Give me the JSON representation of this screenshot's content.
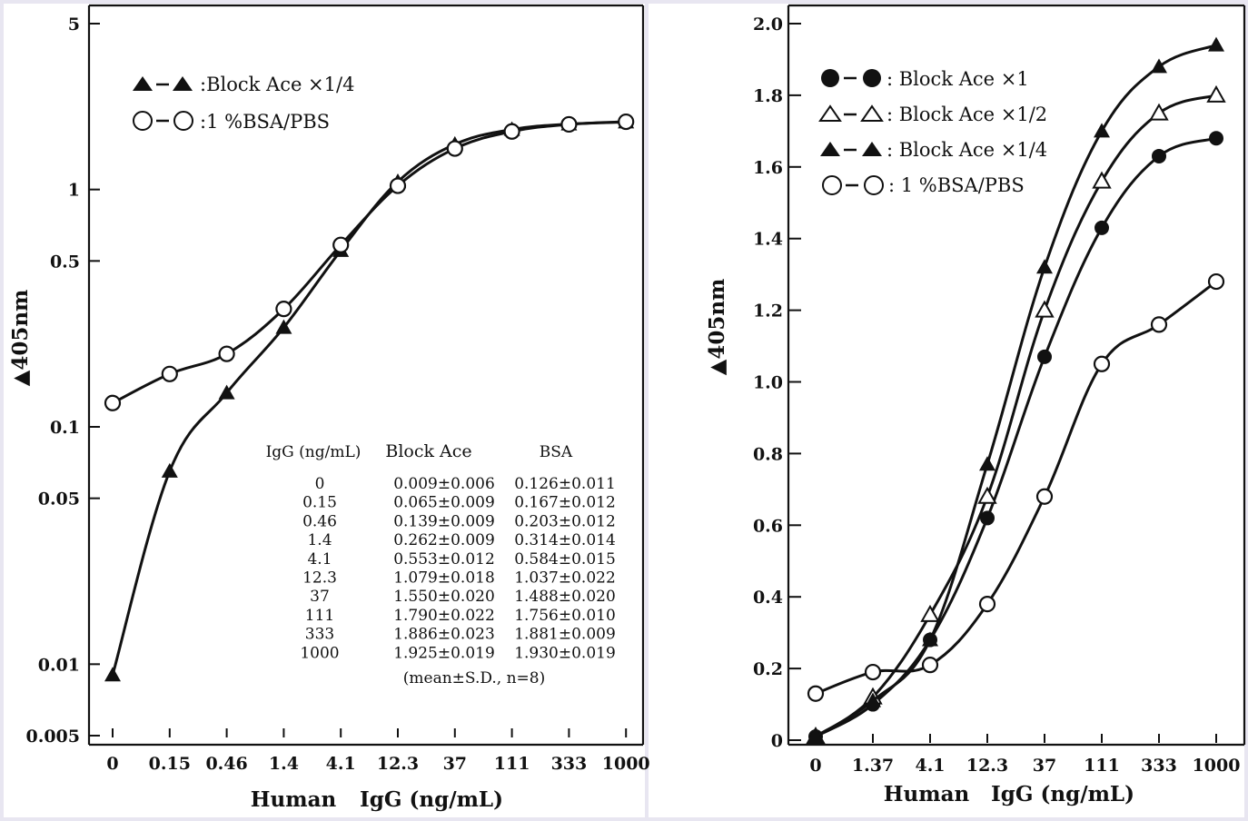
{
  "chart_data": [
    {
      "type": "line",
      "yscale": "log",
      "ylabel": "▲405nm",
      "xlabel": {
        "name": "Human",
        "unit": "IgG (ng/mL)"
      },
      "categories": [
        "0",
        "0.15",
        "0.46",
        "1.4",
        "4.1",
        "12.3",
        "37",
        "111",
        "333",
        "1000"
      ],
      "yticks": [
        {
          "value": 5,
          "label": "5"
        },
        {
          "value": 1,
          "label": "1"
        },
        {
          "value": 0.5,
          "label": "0.5"
        },
        {
          "value": 0.1,
          "label": "0.1"
        },
        {
          "value": 0.05,
          "label": "0.05"
        },
        {
          "value": 0.01,
          "label": "0.01"
        },
        {
          "value": 0.005,
          "label": "0.005"
        }
      ],
      "ylim": [
        0.005,
        5
      ],
      "series": [
        {
          "name": "Block Ace ×1/4",
          "legend_label": ":Block Ace ×1/4",
          "marker": "triangle-filled",
          "values": [
            0.009,
            0.065,
            0.139,
            0.262,
            0.553,
            1.079,
            1.55,
            1.79,
            1.886,
            1.925
          ]
        },
        {
          "name": "1%BSA/PBS",
          "legend_label": ":1 %BSA/PBS",
          "marker": "circle-open",
          "values": [
            0.126,
            0.167,
            0.203,
            0.314,
            0.584,
            1.037,
            1.488,
            1.756,
            1.881,
            1.93
          ]
        }
      ],
      "table": {
        "headers": [
          "IgG (ng/mL)",
          "Block Ace",
          "BSA"
        ],
        "rows": [
          [
            "0",
            "0.009±0.006",
            "0.126±0.011"
          ],
          [
            "0.15",
            "0.065±0.009",
            "0.167±0.012"
          ],
          [
            "0.46",
            "0.139±0.009",
            "0.203±0.012"
          ],
          [
            "1.4",
            "0.262±0.009",
            "0.314±0.014"
          ],
          [
            "4.1",
            "0.553±0.012",
            "0.584±0.015"
          ],
          [
            "12.3",
            "1.079±0.018",
            "1.037±0.022"
          ],
          [
            "37",
            "1.550±0.020",
            "1.488±0.020"
          ],
          [
            "111",
            "1.790±0.022",
            "1.756±0.010"
          ],
          [
            "333",
            "1.886±0.023",
            "1.881±0.009"
          ],
          [
            "1000",
            "1.925±0.019",
            "1.930±0.019"
          ]
        ],
        "note": "(mean±S.D., n=8)"
      }
    },
    {
      "type": "line",
      "yscale": "linear",
      "ylabel": "▲405nm",
      "xlabel": {
        "name": "Human",
        "unit": "IgG (ng/mL)"
      },
      "categories": [
        "0",
        "1.37",
        "4.1",
        "12.3",
        "37",
        "111",
        "333",
        "1000"
      ],
      "yticks": [
        {
          "value": 0,
          "label": "0"
        },
        {
          "value": 0.2,
          "label": "0.2"
        },
        {
          "value": 0.4,
          "label": "0.4"
        },
        {
          "value": 0.6,
          "label": "0.6"
        },
        {
          "value": 0.8,
          "label": "0.8"
        },
        {
          "value": 1.0,
          "label": "1.0"
        },
        {
          "value": 1.2,
          "label": "1.2"
        },
        {
          "value": 1.4,
          "label": "1.4"
        },
        {
          "value": 1.6,
          "label": "1.6"
        },
        {
          "value": 1.8,
          "label": "1.8"
        },
        {
          "value": 2.0,
          "label": "2.0"
        }
      ],
      "ylim": [
        0,
        2.0
      ],
      "series": [
        {
          "name": "Block Ace ×1",
          "legend_label": ": Block Ace ×1",
          "marker": "circle-filled",
          "values": [
            0.01,
            0.1,
            0.28,
            0.62,
            1.07,
            1.43,
            1.63,
            1.68
          ]
        },
        {
          "name": "Block Ace ×1/2",
          "legend_label": ": Block Ace ×1/2",
          "marker": "triangle-open",
          "values": [
            0.01,
            0.12,
            0.35,
            0.68,
            1.2,
            1.56,
            1.75,
            1.8
          ]
        },
        {
          "name": "Block Ace ×1/4",
          "legend_label": ": Block Ace ×1/4",
          "marker": "triangle-filled",
          "values": [
            0.01,
            0.11,
            0.28,
            0.77,
            1.32,
            1.7,
            1.88,
            1.94
          ]
        },
        {
          "name": "1%BSA/PBS",
          "legend_label": ": 1 %BSA/PBS",
          "marker": "circle-open",
          "values": [
            0.13,
            0.19,
            0.21,
            0.38,
            0.68,
            1.05,
            1.16,
            1.28
          ]
        }
      ]
    }
  ]
}
